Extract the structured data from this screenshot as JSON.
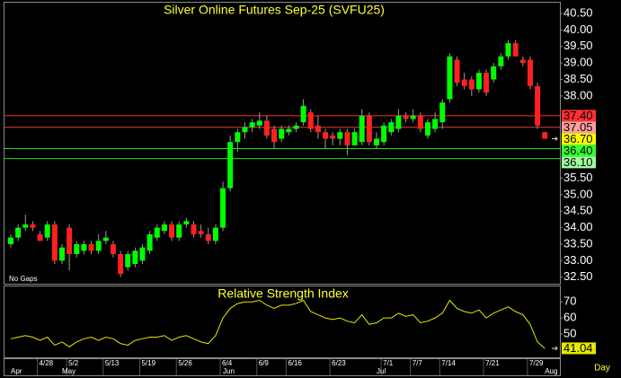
{
  "chart_data": [
    {
      "type": "candlestick",
      "title": "Silver Online Futures Sep-25 (SVFU25)",
      "note": "No Gaps",
      "categories": [
        null,
        null,
        null,
        null,
        "4/28",
        null,
        null,
        null,
        "5/2",
        null,
        null,
        null,
        null,
        "5/13",
        null,
        null,
        null,
        null,
        "5/19",
        null,
        null,
        null,
        null,
        "5/26",
        null,
        null,
        null,
        null,
        null,
        "6/4",
        null,
        null,
        null,
        null,
        "6/9",
        null,
        null,
        null,
        "6/16",
        null,
        null,
        null,
        null,
        null,
        "6/23",
        null,
        null,
        null,
        null,
        null,
        null,
        "7/1",
        null,
        null,
        null,
        "7/7",
        null,
        null,
        null,
        "7/14",
        null,
        null,
        null,
        null,
        null,
        "7/21",
        null,
        null,
        null,
        null,
        null,
        "7/29",
        null,
        null
      ],
      "months": [
        "Apr",
        null,
        null,
        null,
        null,
        null,
        null,
        "May",
        null,
        null,
        null,
        null,
        null,
        null,
        null,
        null,
        null,
        null,
        null,
        null,
        null,
        null,
        null,
        null,
        null,
        null,
        null,
        null,
        null,
        "Jun",
        null,
        null,
        null,
        null,
        null,
        null,
        null,
        null,
        null,
        null,
        null,
        null,
        null,
        null,
        null,
        null,
        null,
        null,
        null,
        null,
        "Jul",
        null,
        null,
        null,
        null,
        null,
        null,
        null,
        null,
        null,
        null,
        null,
        null,
        null,
        null,
        null,
        null,
        null,
        null,
        null,
        null,
        null,
        null,
        "Aug"
      ],
      "interval": "Day",
      "open": [
        33.5,
        33.7,
        34.0,
        34.1,
        33.8,
        33.7,
        34.1,
        33.0,
        34.0,
        33.2,
        33.3,
        33.5,
        33.3,
        33.6,
        33.5,
        33.2,
        32.8,
        32.9,
        33.0,
        33.3,
        33.7,
        33.9,
        34.1,
        33.7,
        34.1,
        34.1,
        33.9,
        33.8,
        33.6,
        34.0,
        35.2,
        36.6,
        36.9,
        37.05,
        37.1,
        37.25,
        37.0,
        36.7,
        36.9,
        37.0,
        37.2,
        37.5,
        37.1,
        36.9,
        36.8,
        36.7,
        36.9,
        36.5,
        36.6,
        37.4,
        36.5,
        36.6,
        36.9,
        37.0,
        37.4,
        37.3,
        37.4,
        36.8,
        37.0,
        37.2,
        37.9,
        39.1,
        38.5,
        38.5,
        38.2,
        38.7,
        38.5,
        38.9,
        39.2,
        39.6,
        39.1,
        39.1,
        38.3,
        36.9
      ],
      "high": [
        33.8,
        34.1,
        34.4,
        34.2,
        33.9,
        34.2,
        34.2,
        33.5,
        34.1,
        33.6,
        33.6,
        33.6,
        33.8,
        33.9,
        33.6,
        33.3,
        33.3,
        33.4,
        33.5,
        33.9,
        34.1,
        34.2,
        34.2,
        34.2,
        34.3,
        34.2,
        34.1,
        34.0,
        34.1,
        35.4,
        36.8,
        37.0,
        37.2,
        37.3,
        37.5,
        37.4,
        37.1,
        37.1,
        37.1,
        37.2,
        37.9,
        37.6,
        37.4,
        37.0,
        36.9,
        37.0,
        37.0,
        37.0,
        37.6,
        37.5,
        36.9,
        37.2,
        37.3,
        37.6,
        37.5,
        37.6,
        37.5,
        37.3,
        37.5,
        37.9,
        39.3,
        39.2,
        38.7,
        38.6,
        38.8,
        38.8,
        39.0,
        39.3,
        39.7,
        39.7,
        39.2,
        39.2,
        38.4,
        36.9
      ],
      "low": [
        33.4,
        33.6,
        33.9,
        33.9,
        33.6,
        33.6,
        32.9,
        32.9,
        32.7,
        33.1,
        33.2,
        33.2,
        33.2,
        33.5,
        33.1,
        32.5,
        32.7,
        32.8,
        32.9,
        33.2,
        33.6,
        33.8,
        33.6,
        33.6,
        34.0,
        33.7,
        33.7,
        33.5,
        33.5,
        33.9,
        35.1,
        36.3,
        36.7,
        36.9,
        37.0,
        36.7,
        36.4,
        36.6,
        36.8,
        36.9,
        37.1,
        36.9,
        36.7,
        36.4,
        36.5,
        36.5,
        36.2,
        36.5,
        36.5,
        36.5,
        36.4,
        36.5,
        36.8,
        36.9,
        37.2,
        37.2,
        36.9,
        36.7,
        36.9,
        37.0,
        37.8,
        38.3,
        38.2,
        38.0,
        38.1,
        38.0,
        38.4,
        38.8,
        39.1,
        39.2,
        38.9,
        38.2,
        37.0,
        36.7
      ],
      "close": [
        33.7,
        34.0,
        34.1,
        34.0,
        33.6,
        34.1,
        33.0,
        33.4,
        33.2,
        33.5,
        33.5,
        33.3,
        33.6,
        33.7,
        33.2,
        32.6,
        33.2,
        33.3,
        33.4,
        33.8,
        34.0,
        34.1,
        33.7,
        34.1,
        34.2,
        33.8,
        33.8,
        33.6,
        34.0,
        35.2,
        36.6,
        36.9,
        37.05,
        37.2,
        37.25,
        36.8,
        36.6,
        37.0,
        37.0,
        37.1,
        37.7,
        37.0,
        36.9,
        36.7,
        36.7,
        36.9,
        36.5,
        36.9,
        37.4,
        36.6,
        36.7,
        37.1,
        37.2,
        37.4,
        37.3,
        37.4,
        37.0,
        37.2,
        37.3,
        37.8,
        39.2,
        38.4,
        38.3,
        38.2,
        38.7,
        38.1,
        38.9,
        39.2,
        39.6,
        39.2,
        39.0,
        38.3,
        37.1,
        36.7
      ],
      "up_color": "#00ff00",
      "down_color": "#ff2020",
      "last_label": "36.70",
      "last_color": "#ffff00",
      "levels": [
        {
          "value": 37.4,
          "label": "37.40",
          "color": "#ff2a2a",
          "label_color": "#ff3030"
        },
        {
          "value": 37.05,
          "label": "37.05",
          "color": "#e04040",
          "label_color": "#ff9f9f"
        },
        {
          "value": 36.4,
          "label": "36.40",
          "color": "#22dd22",
          "label_color": "#33ff33"
        },
        {
          "value": 36.1,
          "label": "36.10",
          "color": "#22dd22",
          "label_color": "#a0ffa0"
        }
      ],
      "ylim": [
        32.3,
        40.83
      ],
      "yticks": [
        {
          "value": 40.5,
          "label": "40.50"
        },
        {
          "value": 40,
          "label": "40.00"
        },
        {
          "value": 39.5,
          "label": "39.50"
        },
        {
          "value": 39,
          "label": "39.00"
        },
        {
          "value": 38.5,
          "label": "38.50"
        },
        {
          "value": 38,
          "label": "38.00"
        },
        {
          "value": 35.5,
          "label": "35.50"
        },
        {
          "value": 35,
          "label": "35.00"
        },
        {
          "value": 34.5,
          "label": "34.50"
        },
        {
          "value": 34,
          "label": "34.00"
        },
        {
          "value": 33.5,
          "label": "33.50"
        },
        {
          "value": 33,
          "label": "33.00"
        },
        {
          "value": 32.5,
          "label": "32.50"
        }
      ]
    },
    {
      "type": "line",
      "title": "Relative Strength Index",
      "color": "#e8e800",
      "values": [
        47,
        48,
        49,
        48,
        46,
        48,
        43,
        45,
        42,
        45,
        47,
        48,
        46,
        48,
        47,
        44,
        43,
        46,
        47,
        48,
        48,
        49,
        46,
        48,
        49,
        47,
        45,
        44,
        49,
        60,
        66,
        69,
        70,
        70,
        71,
        68,
        66,
        68,
        68,
        69,
        71,
        64,
        62,
        60,
        59,
        60,
        58,
        57,
        62,
        56,
        57,
        60,
        60,
        63,
        61,
        62,
        57,
        58,
        60,
        63,
        71,
        66,
        64,
        63,
        65,
        60,
        63,
        65,
        67,
        64,
        62,
        56,
        45,
        41.04
      ],
      "last_label": "41.04",
      "ylim": [
        35.4,
        79.7
      ],
      "yticks": [
        50,
        60,
        70
      ]
    }
  ]
}
